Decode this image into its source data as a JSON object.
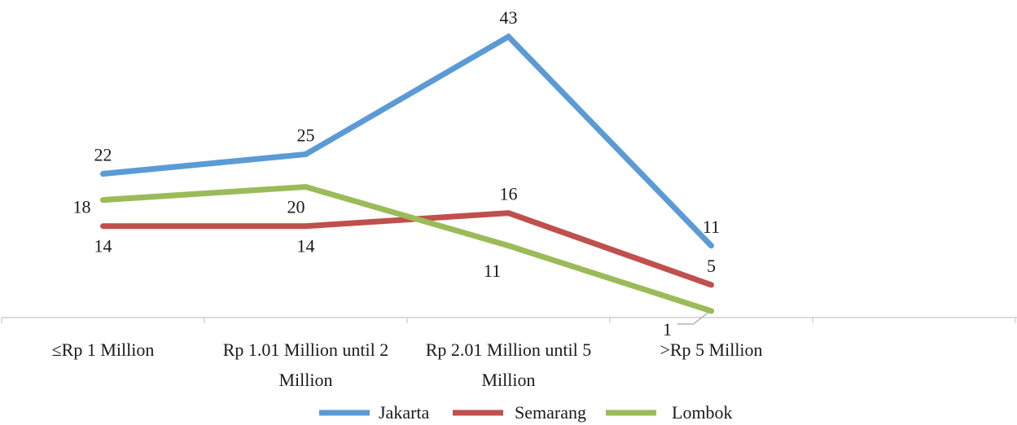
{
  "chart_data": {
    "type": "line",
    "categories": [
      [
        "≤Rp 1 Million"
      ],
      [
        "Rp 1.01 Million until 2",
        "Million"
      ],
      [
        "Rp 2.01 Million until 5",
        "Million"
      ],
      [
        ">Rp 5 Million"
      ]
    ],
    "series": [
      {
        "name": "Jakarta",
        "color": "#5b9bd5",
        "values": [
          22,
          25,
          43,
          11
        ]
      },
      {
        "name": "Semarang",
        "color": "#c0504d",
        "values": [
          14,
          14,
          16,
          5
        ]
      },
      {
        "name": "Lombok",
        "color": "#9bbb59",
        "values": [
          18,
          20,
          11,
          1
        ]
      }
    ],
    "ylim": [
      -3,
      47
    ],
    "grid": false,
    "legend_position": "bottom",
    "title": "",
    "xlabel": "",
    "ylabel": ""
  }
}
